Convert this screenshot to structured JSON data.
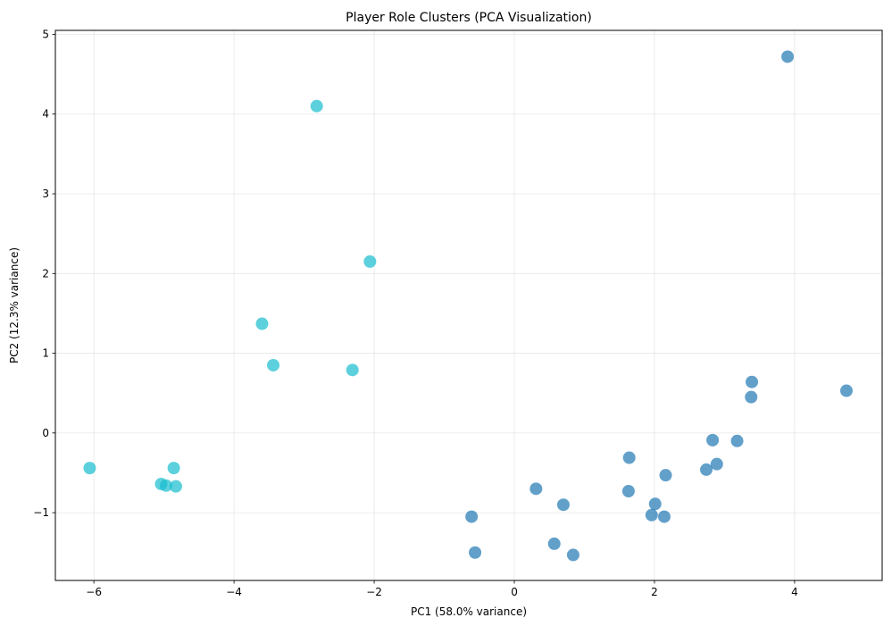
{
  "chart_data": {
    "type": "scatter",
    "title": "Player Role Clusters (PCA Visualization)",
    "xlabel": "PC1 (58.0% variance)",
    "ylabel": "PC2 (12.3% variance)",
    "xlim": [
      -6.55,
      5.25
    ],
    "ylim": [
      -1.85,
      5.05
    ],
    "xticks": [
      -6,
      -4,
      -2,
      0,
      2,
      4
    ],
    "yticks": [
      -1,
      0,
      1,
      2,
      3,
      4,
      5
    ],
    "xtick_labels": [
      "−6",
      "−4",
      "−2",
      "0",
      "2",
      "4"
    ],
    "ytick_labels": [
      "−1",
      "0",
      "1",
      "2",
      "3",
      "4",
      "5"
    ],
    "grid": true,
    "legend": "none",
    "series": [
      {
        "color": "#17becf",
        "points": [
          [
            -2.82,
            4.1
          ],
          [
            -2.06,
            2.15
          ],
          [
            -3.6,
            1.37
          ],
          [
            -3.44,
            0.85
          ],
          [
            -2.31,
            0.79
          ],
          [
            -6.06,
            -0.44
          ],
          [
            -4.86,
            -0.44
          ],
          [
            -5.04,
            -0.64
          ],
          [
            -4.97,
            -0.66
          ],
          [
            -4.83,
            -0.67
          ]
        ]
      },
      {
        "color": "#1f77b4",
        "points": [
          [
            3.9,
            4.72
          ],
          [
            4.74,
            0.53
          ],
          [
            3.39,
            0.64
          ],
          [
            3.38,
            0.45
          ],
          [
            3.18,
            -0.1
          ],
          [
            2.83,
            -0.09
          ],
          [
            2.89,
            -0.39
          ],
          [
            2.74,
            -0.46
          ],
          [
            1.64,
            -0.31
          ],
          [
            2.16,
            -0.53
          ],
          [
            1.63,
            -0.73
          ],
          [
            0.31,
            -0.7
          ],
          [
            0.7,
            -0.9
          ],
          [
            2.01,
            -0.89
          ],
          [
            1.96,
            -1.03
          ],
          [
            2.14,
            -1.05
          ],
          [
            -0.61,
            -1.05
          ],
          [
            -0.56,
            -1.5
          ],
          [
            0.57,
            -1.39
          ],
          [
            0.84,
            -1.53
          ]
        ]
      }
    ]
  }
}
